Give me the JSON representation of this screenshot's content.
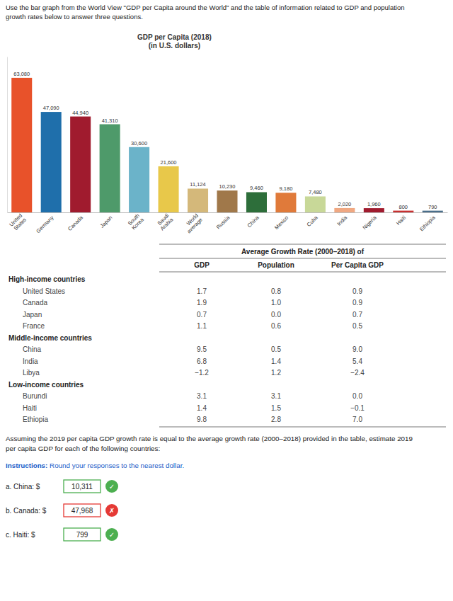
{
  "header_text": "Use the bar graph from the World View \"GDP per Capita around the World\" and the table of information related to GDP and population\ngrowth rates below to answer three questions.",
  "chart_data": {
    "type": "bar",
    "title": "GDP per Capita (2018)\n(in U.S. dollars)",
    "categories": [
      "United\nStates",
      "Germany",
      "Canada",
      "Japan",
      "South\nKorea",
      "Saudi\nArabia",
      "World\naverage",
      "Russia",
      "China",
      "Mexico",
      "Cuba",
      "India",
      "Nigeria",
      "Haiti",
      "Ethiopia"
    ],
    "values": [
      63080,
      47090,
      44940,
      41310,
      30600,
      21600,
      11124,
      10230,
      9460,
      9180,
      7480,
      2020,
      1960,
      800,
      790
    ],
    "value_labels": [
      "63,080",
      "47,090",
      "44,940",
      "41,310",
      "30,600",
      "21,600",
      "11,124",
      "10,230",
      "9,460",
      "9,180",
      "7,480",
      "2,020",
      "1,960",
      "800",
      "790"
    ],
    "colors": [
      "#E8522A",
      "#1F6FAB",
      "#A01B2E",
      "#4E9A6A",
      "#6BB3C9",
      "#E8C84A",
      "#D4B87A",
      "#A0784A",
      "#2D6E3A",
      "#E07A3A",
      "#C8D898",
      "#F0A882",
      "#A01B2E",
      "#C83030",
      "#4A6E8A"
    ],
    "ylim": [
      0,
      73000
    ],
    "data_labels": true,
    "tick_labels": "x",
    "grid": false
  },
  "table": {
    "title": "Average Growth Rate (2000–2018) of",
    "columns": [
      "GDP",
      "Population",
      "Per Capita GDP"
    ],
    "sections": [
      {
        "name": "High-income countries",
        "rows": [
          {
            "country": "United States",
            "gdp": "1.7",
            "pop": "0.8",
            "per_capita": "0.9"
          },
          {
            "country": "Canada",
            "gdp": "1.9",
            "pop": "1.0",
            "per_capita": "0.9"
          },
          {
            "country": "Japan",
            "gdp": "0.7",
            "pop": "0.0",
            "per_capita": "0.7"
          },
          {
            "country": "France",
            "gdp": "1.1",
            "pop": "0.6",
            "per_capita": "0.5"
          }
        ]
      },
      {
        "name": "Middle-income countries",
        "rows": [
          {
            "country": "China",
            "gdp": "9.5",
            "pop": "0.5",
            "per_capita": "9.0"
          },
          {
            "country": "India",
            "gdp": "6.8",
            "pop": "1.4",
            "per_capita": "5.4"
          },
          {
            "country": "Libya",
            "gdp": "−1.2",
            "pop": "1.2",
            "per_capita": "−2.4"
          }
        ]
      },
      {
        "name": "Low-income countries",
        "rows": [
          {
            "country": "Burundi",
            "gdp": "3.1",
            "pop": "3.1",
            "per_capita": "0.0"
          },
          {
            "country": "Haiti",
            "gdp": "1.4",
            "pop": "1.5",
            "per_capita": "−0.1"
          },
          {
            "country": "Ethiopia",
            "gdp": "9.8",
            "pop": "2.8",
            "per_capita": "7.0"
          }
        ]
      }
    ]
  },
  "bottom_text": "Assuming the 2019 per capita GDP growth rate is equal to the average growth rate (2000–2018) provided in the table, estimate 2019\nper capita GDP for each of the following countries:",
  "instructions_label": "Instructions:",
  "instructions_text": " Round your responses to the nearest dollar.",
  "qa": [
    {
      "label": "a. China: $",
      "value": "10,311",
      "correct": true,
      "icon": "✓"
    },
    {
      "label": "b. Canada: $",
      "value": "47,968",
      "correct": false,
      "icon": "✗"
    },
    {
      "label": "c. Haiti: $",
      "value": "799",
      "correct": true,
      "icon": "✓"
    }
  ]
}
